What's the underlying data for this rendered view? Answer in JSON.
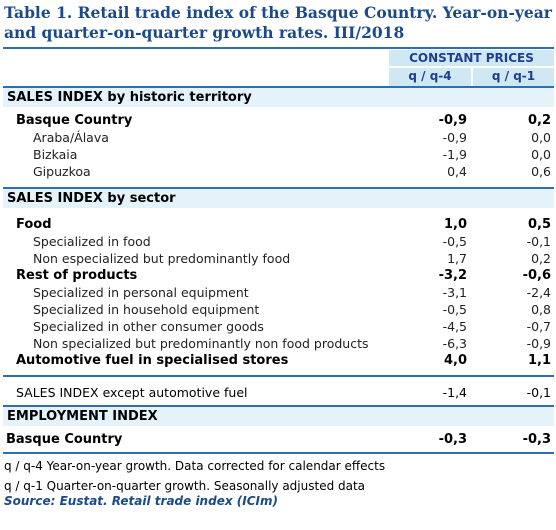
{
  "title": "Table 1. Retail trade index of the Basque Country. Year-on-year and quarter-on-quarter growth rates. III/2018",
  "header": {
    "group": "CONSTANT PRICES",
    "col1": "q / q-4",
    "col2": "q / q-1"
  },
  "sections": {
    "territory": "SALES INDEX by historic territory",
    "sector": "SALES INDEX by sector",
    "employment": "EMPLOYMENT INDEX"
  },
  "rows": {
    "basque": {
      "label": "Basque Country",
      "v1": "-0,9",
      "v2": "0,2"
    },
    "araba": {
      "label": "Araba/Álava",
      "v1": "-0,9",
      "v2": "0,0"
    },
    "bizkaia": {
      "label": "Bizkaia",
      "v1": "-1,9",
      "v2": "0,0"
    },
    "gipuzkoa": {
      "label": "Gipuzkoa",
      "v1": "0,4",
      "v2": "0,6"
    },
    "food": {
      "label": "Food",
      "v1": "1,0",
      "v2": "0,5"
    },
    "spec_food": {
      "label": "Specialized in food",
      "v1": "-0,5",
      "v2": "-0,1"
    },
    "nonspec_food": {
      "label": "Non especialized but predominantly food",
      "v1": "1,7",
      "v2": "0,2"
    },
    "rest": {
      "label": "Rest of products",
      "v1": "-3,2",
      "v2": "-0,6"
    },
    "personal": {
      "label": "Specialized in personal equipment",
      "v1": "-3,1",
      "v2": "-2,4"
    },
    "household": {
      "label": "Specialized in household equipment",
      "v1": "-0,5",
      "v2": "0,8"
    },
    "other": {
      "label": "Specialized in other consumer goods",
      "v1": "-4,5",
      "v2": "-0,7"
    },
    "nonfood": {
      "label": "Non specialized but predominantly non food products",
      "v1": "-6,3",
      "v2": "-0,9"
    },
    "fuel": {
      "label": "Automotive fuel in specialised stores",
      "v1": "4,0",
      "v2": "1,1"
    },
    "except": {
      "label": "SALES INDEX except automotive fuel",
      "v1": "-1,4",
      "v2": "-0,1"
    },
    "emp_basque": {
      "label": "Basque Country",
      "v1": "-0,3",
      "v2": "-0,3"
    }
  },
  "notes": {
    "n1": "q / q-4 Year-on-year growth. Data corrected for calendar effects",
    "n2": "q / q-1 Quarter-on-quarter growth. Seasonally adjusted data",
    "source": "Source: Eustat. Retail trade index (ICIm)"
  },
  "colors": {
    "title": "#1a4a8c",
    "header_bg": "#cfe8f4",
    "section_bg": "#e4f2f9",
    "rule": "#2f6fb0"
  }
}
